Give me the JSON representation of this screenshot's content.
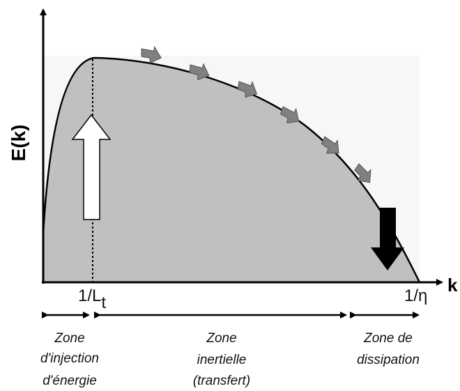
{
  "y_axis_label": "E(k)",
  "x_axis_label": "k",
  "ticks": [
    {
      "main": "1/L",
      "sub": "t"
    },
    {
      "main": "1/η"
    }
  ],
  "zones": [
    {
      "lines": [
        "Zone",
        "d'injection",
        "d'énergie"
      ]
    },
    {
      "lines": [
        "Zone",
        "inertielle",
        "(transfert)"
      ]
    },
    {
      "lines": [
        "Zone de",
        "dissipation"
      ]
    }
  ]
}
